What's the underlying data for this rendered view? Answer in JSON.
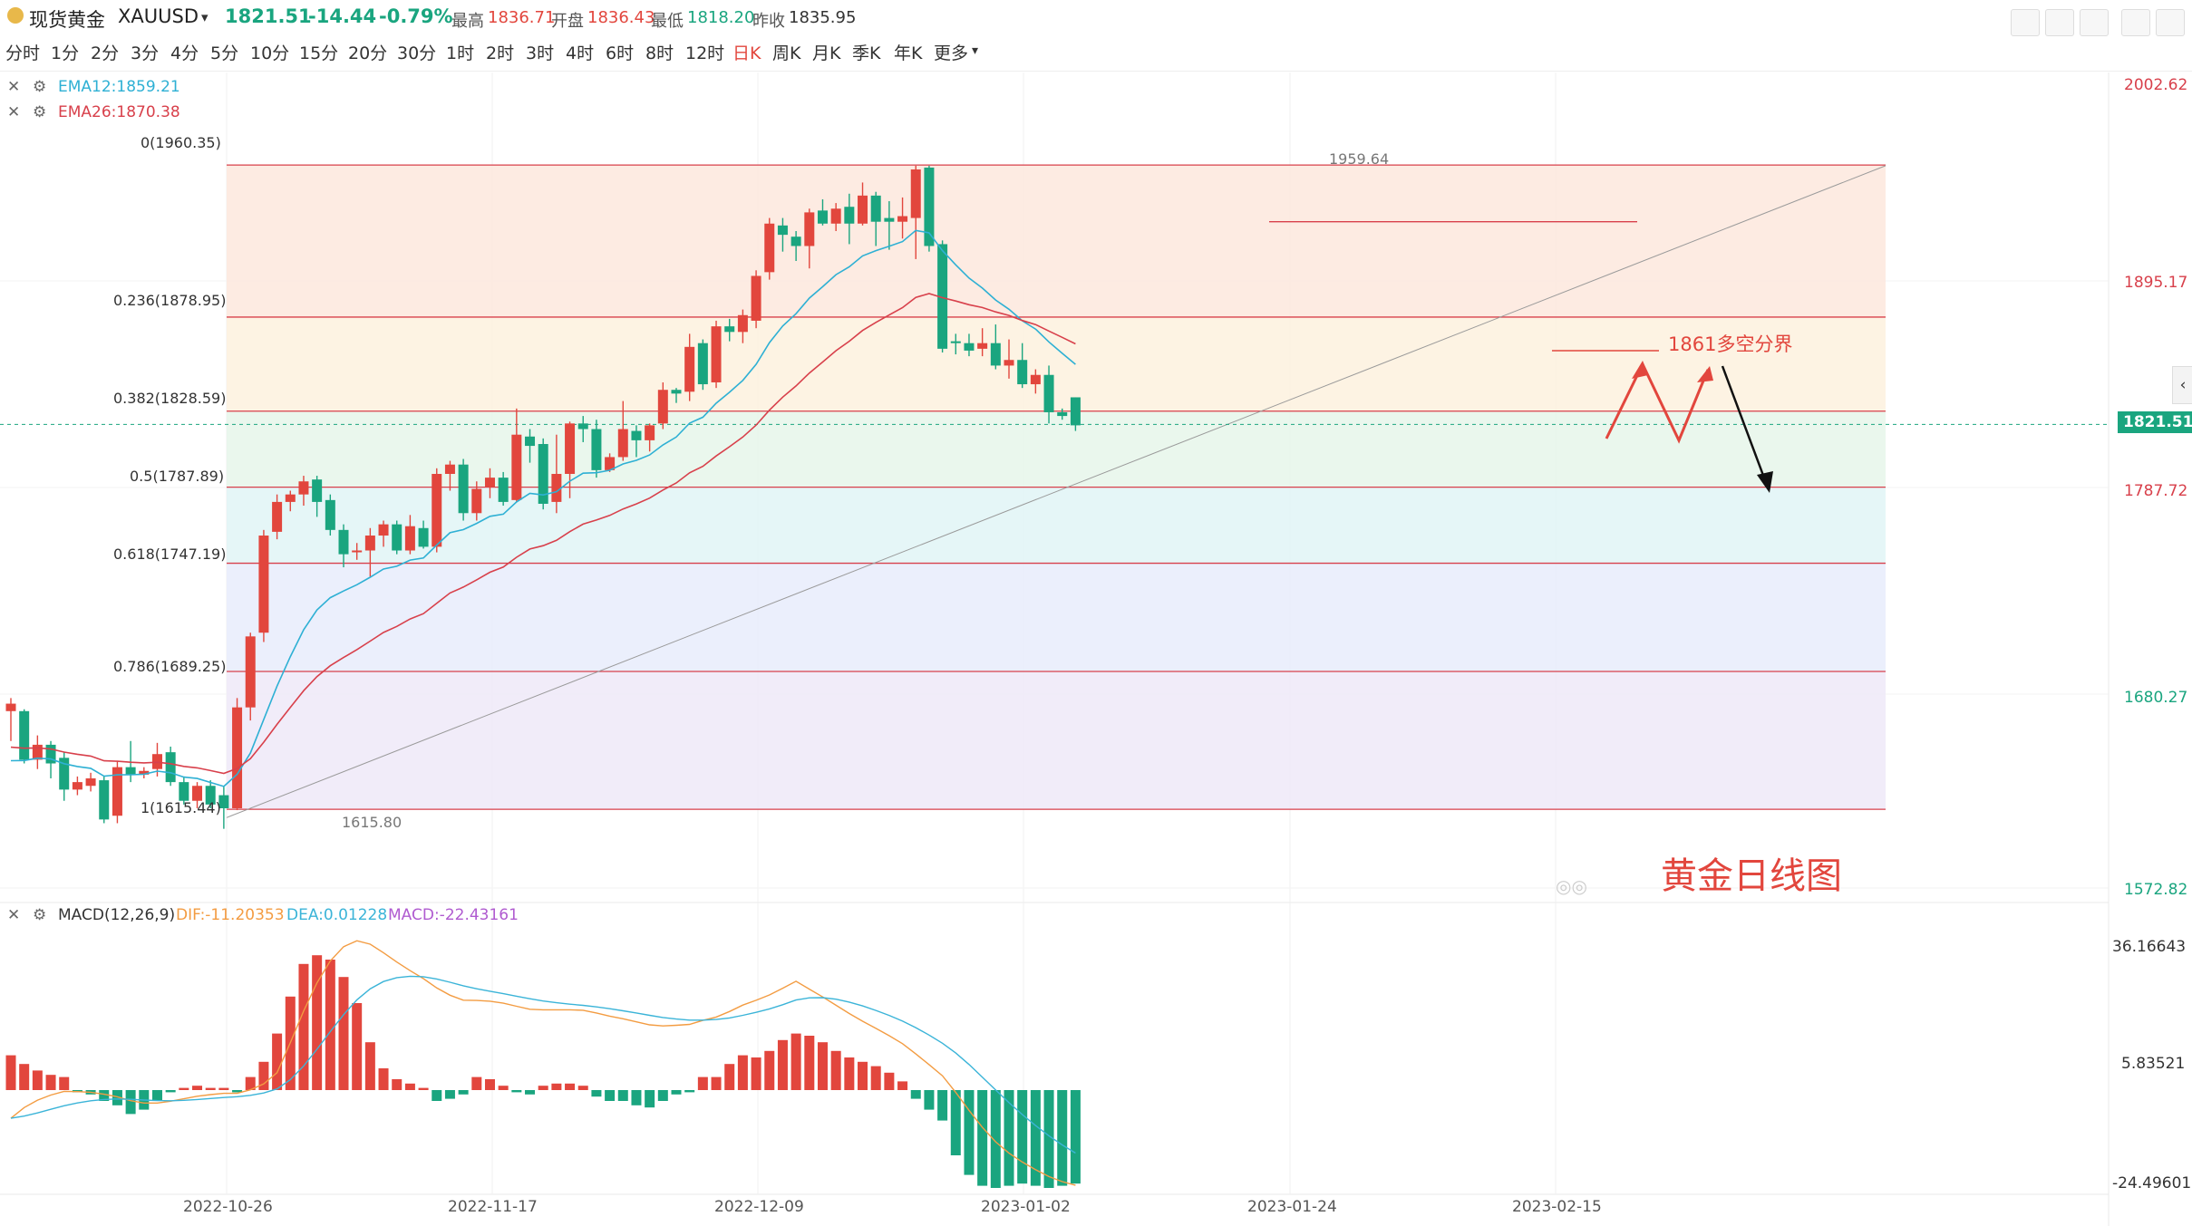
{
  "header": {
    "symbol_name": "现货黄金",
    "symbol_code": "XAUUSD",
    "price": "1821.51",
    "change": "-14.44",
    "change_pct": "-0.79%",
    "high_label": "最高",
    "high": "1836.71",
    "open_label": "开盘",
    "open": "1836.43",
    "low_label": "最低",
    "low": "1818.20",
    "prev_label": "昨收",
    "prev": "1835.95"
  },
  "timeframes": [
    "分时",
    "1分",
    "2分",
    "3分",
    "4分",
    "5分",
    "10分",
    "15分",
    "20分",
    "30分",
    "1时",
    "2时",
    "3时",
    "4时",
    "6时",
    "8时",
    "12时",
    "日K",
    "周K",
    "月K",
    "季K",
    "年K",
    "更多"
  ],
  "active_timeframe": "日K",
  "indicators": {
    "ema12": "EMA12:1859.21",
    "ema26": "EMA26:1870.38",
    "macd_name": "MACD(12,26,9)",
    "dif": "DIF:-11.20353",
    "dea": "DEA:0.01228",
    "macd": "MACD:-22.43161"
  },
  "price_axis": [
    "2002.62",
    "1895.17",
    "1787.72",
    "1680.27",
    "1572.82"
  ],
  "current_price_tag": "1821.51",
  "macd_axis": [
    "36.16643",
    "5.83521",
    "-24.49601"
  ],
  "dates": [
    "2022-10-26",
    "2022-11-17",
    "2022-12-09",
    "2023-01-02",
    "2023-01-24",
    "2023-02-15"
  ],
  "fib_levels": [
    {
      "label": "0(1960.35)",
      "price": 1960.35
    },
    {
      "label": "0.236(1878.95)",
      "price": 1878.95
    },
    {
      "label": "0.382(1828.59)",
      "price": 1828.59
    },
    {
      "label": "0.5(1787.89)",
      "price": 1787.89
    },
    {
      "label": "0.618(1747.19)",
      "price": 1747.19
    },
    {
      "label": "0.786(1689.25)",
      "price": 1689.25
    },
    {
      "label": "1(1615.44)",
      "price": 1615.44
    }
  ],
  "annotations": {
    "high_mark": "1959.64",
    "low_mark": "1615.80",
    "pivot_label": "1861多空分界",
    "chart_caption": "黄金日线图"
  },
  "colors": {
    "up": "#e2463d",
    "down": "#1aa57f",
    "ema12": "#2eb0d4",
    "ema26": "#d8404b",
    "dif": "#f39c42",
    "dea": "#3bb4d8"
  },
  "chart_data": {
    "type": "candlestick",
    "y_range": [
      1572.82,
      2002.62
    ],
    "candles": [
      [
        1668,
        1672,
        1652,
        1675
      ],
      [
        1668,
        1642,
        1640,
        1669
      ],
      [
        1642,
        1650,
        1637,
        1655
      ],
      [
        1650,
        1640,
        1632,
        1652
      ],
      [
        1643,
        1626,
        1620,
        1646
      ],
      [
        1626,
        1630,
        1623,
        1633
      ],
      [
        1628,
        1632,
        1625,
        1635
      ],
      [
        1631,
        1610,
        1608,
        1633
      ],
      [
        1612,
        1638,
        1608,
        1641
      ],
      [
        1638,
        1634,
        1630,
        1652
      ],
      [
        1634,
        1636,
        1632,
        1638
      ],
      [
        1637,
        1645,
        1633,
        1651
      ],
      [
        1646,
        1630,
        1628,
        1649
      ],
      [
        1630,
        1620,
        1618,
        1633
      ],
      [
        1620,
        1628,
        1616,
        1630
      ],
      [
        1628,
        1618,
        1616,
        1631
      ],
      [
        1623,
        1616,
        1605,
        1628
      ],
      [
        1616,
        1670,
        1615,
        1675
      ],
      [
        1670,
        1708,
        1663,
        1710
      ],
      [
        1710,
        1762,
        1705,
        1765
      ],
      [
        1764,
        1780,
        1760,
        1784
      ],
      [
        1780,
        1784,
        1775,
        1786
      ],
      [
        1784,
        1791,
        1778,
        1794
      ],
      [
        1792,
        1780,
        1772,
        1794
      ],
      [
        1781,
        1765,
        1762,
        1784
      ],
      [
        1765,
        1752,
        1745,
        1768
      ],
      [
        1754,
        1754,
        1749,
        1758
      ],
      [
        1754,
        1762,
        1740,
        1766
      ],
      [
        1762,
        1768,
        1756,
        1770
      ],
      [
        1768,
        1754,
        1752,
        1770
      ],
      [
        1754,
        1767,
        1752,
        1773
      ],
      [
        1766,
        1756,
        1755,
        1770
      ],
      [
        1756,
        1795,
        1753,
        1798
      ],
      [
        1795,
        1800,
        1786,
        1802
      ],
      [
        1800,
        1774,
        1770,
        1803
      ],
      [
        1774,
        1787,
        1770,
        1791
      ],
      [
        1788,
        1793,
        1782,
        1798
      ],
      [
        1793,
        1780,
        1778,
        1796
      ],
      [
        1781,
        1816,
        1780,
        1830
      ],
      [
        1815,
        1810,
        1801,
        1819
      ],
      [
        1811,
        1779,
        1776,
        1814
      ],
      [
        1780,
        1795,
        1774,
        1816
      ],
      [
        1795,
        1822,
        1782,
        1823
      ],
      [
        1822,
        1819,
        1812,
        1826
      ],
      [
        1819,
        1797,
        1793,
        1824
      ],
      [
        1797,
        1804,
        1796,
        1806
      ],
      [
        1804,
        1819,
        1802,
        1834
      ],
      [
        1818,
        1813,
        1804,
        1821
      ],
      [
        1813,
        1821,
        1807,
        1822
      ],
      [
        1822,
        1840,
        1819,
        1844
      ],
      [
        1840,
        1838,
        1833,
        1841
      ],
      [
        1839,
        1863,
        1834,
        1870
      ],
      [
        1865,
        1843,
        1840,
        1867
      ],
      [
        1844,
        1874,
        1841,
        1877
      ],
      [
        1874,
        1871,
        1866,
        1878
      ],
      [
        1871,
        1880,
        1865,
        1883
      ],
      [
        1877,
        1901,
        1873,
        1904
      ],
      [
        1903,
        1929,
        1899,
        1932
      ],
      [
        1928,
        1923,
        1914,
        1932
      ],
      [
        1922,
        1917,
        1909,
        1925
      ],
      [
        1917,
        1935,
        1905,
        1937
      ],
      [
        1936,
        1929,
        1928,
        1942
      ],
      [
        1929,
        1937,
        1925,
        1940
      ],
      [
        1938,
        1929,
        1918,
        1945
      ],
      [
        1929,
        1944,
        1928,
        1951
      ],
      [
        1944,
        1930,
        1917,
        1946
      ],
      [
        1932,
        1930,
        1915,
        1941
      ],
      [
        1930,
        1933,
        1921,
        1943
      ],
      [
        1932,
        1958,
        1910,
        1960
      ],
      [
        1959,
        1917,
        1914,
        1960
      ],
      [
        1918,
        1862,
        1860,
        1920
      ],
      [
        1866,
        1865,
        1859,
        1870
      ],
      [
        1865,
        1861,
        1858,
        1870
      ],
      [
        1862,
        1865,
        1858,
        1873
      ],
      [
        1865,
        1853,
        1851,
        1875
      ],
      [
        1853,
        1856,
        1846,
        1867
      ],
      [
        1856,
        1843,
        1841,
        1865
      ],
      [
        1843,
        1848,
        1838,
        1851
      ],
      [
        1848,
        1828,
        1822,
        1853
      ],
      [
        1828,
        1826,
        1824,
        1830
      ],
      [
        1836,
        1821,
        1818,
        1836
      ]
    ],
    "macd_hist": [
      16,
      12,
      9,
      7,
      6,
      -1,
      -2,
      -5,
      -7,
      -11,
      -9,
      -5,
      -1,
      1,
      2,
      1,
      1,
      -1,
      6,
      13,
      26,
      43,
      58,
      62,
      60,
      52,
      40,
      22,
      10,
      5,
      3,
      1,
      -5,
      -4,
      -2,
      6,
      5,
      2,
      -1,
      -2,
      2,
      3,
      3,
      2,
      -3,
      -5,
      -5,
      -7,
      -8,
      -5,
      -2,
      -1,
      6,
      6,
      12,
      16,
      15,
      18,
      23,
      26,
      25,
      22,
      18,
      15,
      13,
      11,
      8,
      4,
      -4,
      -9,
      -14,
      -30,
      -39,
      -44,
      -45,
      -44,
      -43,
      -44,
      -45,
      -44,
      -43
    ],
    "annotations": [
      "0(1960.35)",
      "0.236(1878.95)",
      "0.382(1828.59)",
      "0.5(1787.89)",
      "0.618(1747.19)",
      "0.786(1689.25)",
      "1(1615.44)"
    ]
  }
}
